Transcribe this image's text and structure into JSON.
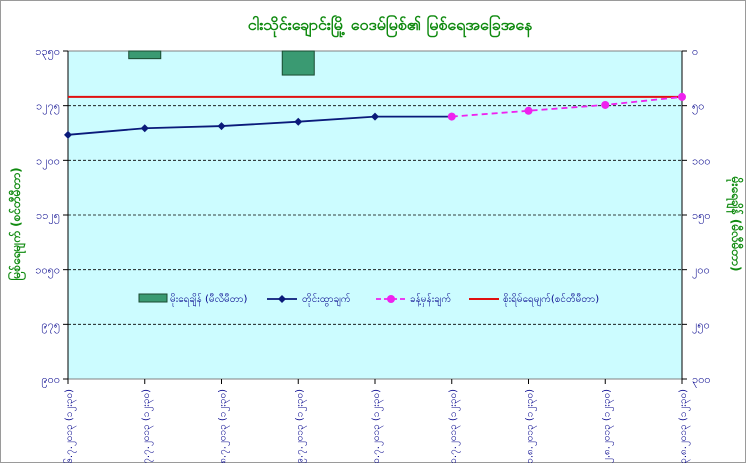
{
  "chart_data": {
    "type": "line",
    "title": "ငါးသိုင်းချောင်းမြို့ ဝေဒမ်မြစ်၏ မြစ်ရေအခြေအနေ",
    "ylabel_left": "မြစ်ရေမျက် (စင်တီမီတာ)",
    "ylabel_right": "မိုးရေချိန် (မီလီမီတာ)",
    "left_axis": {
      "min": 900,
      "max": 1350,
      "step": 75,
      "tick_labels": [
        "၁၃၅၀",
        "၁၂၇၅",
        "၁၂၀၀",
        "၁၁၂၅",
        "၁၀၅၀",
        "၉၇၅",
        "၉၀၀"
      ]
    },
    "right_axis": {
      "min": 0,
      "max": 300,
      "step": 50,
      "reversed": true,
      "tick_labels": [
        "၀",
        "၅၀",
        "၁၀၀",
        "၁၅၀",
        "၂၀၀",
        "၂၅၀",
        "၃၀၀"
      ]
    },
    "grid": "horizontal-dashed",
    "categories": [
      "၂၆.၇.၂၀၁၃ (၁၂း၃၀)",
      "၂၇.၇.၂၀၁၃ (၁၂း၃၀)",
      "၂၈.၇.၂၀၁၃ (၁၂း၃၀)",
      "၂၉.၇.၂၀၁၃ (၁၂း၃၀)",
      "၃၀.၇.၂၀၁၃ (၁၂း၃၀)",
      "၃၁.၇.၂၀၁၃ (၁၂း၃၀)",
      "၁.၈.၂၀၁၃ (၁၂း၃၀)",
      "၂.၈.၂၀၁၃ (၁၂း၃၀)",
      "၃.၈.၂၀၁၃ (၁၂း၃၀)"
    ],
    "series": [
      {
        "name": "မိုးရေချိန် (မီလီမီတာ)",
        "kind": "bar",
        "axis": "right",
        "color": "#3a9a72",
        "values": [
          0,
          7,
          0,
          22,
          0,
          null,
          null,
          null,
          null
        ]
      },
      {
        "name": "တိုင်းထွာချက်",
        "kind": "line",
        "axis": "left",
        "color": "#0a1a7a",
        "marker": "diamond",
        "values": [
          1235,
          1244,
          1247,
          1253,
          1260,
          1260,
          null,
          null,
          null
        ]
      },
      {
        "name": "ခန့်မှန်းချက်",
        "kind": "line",
        "axis": "left",
        "color": "#ee22ee",
        "marker": "circle",
        "dash": true,
        "values": [
          null,
          null,
          null,
          null,
          null,
          1260,
          1268,
          1276,
          1287
        ]
      },
      {
        "name": "စိုးရိမ်ရေမျက်(စင်တီမီတာ)",
        "kind": "hline",
        "axis": "left",
        "color": "#e01010",
        "value": 1287
      }
    ]
  }
}
